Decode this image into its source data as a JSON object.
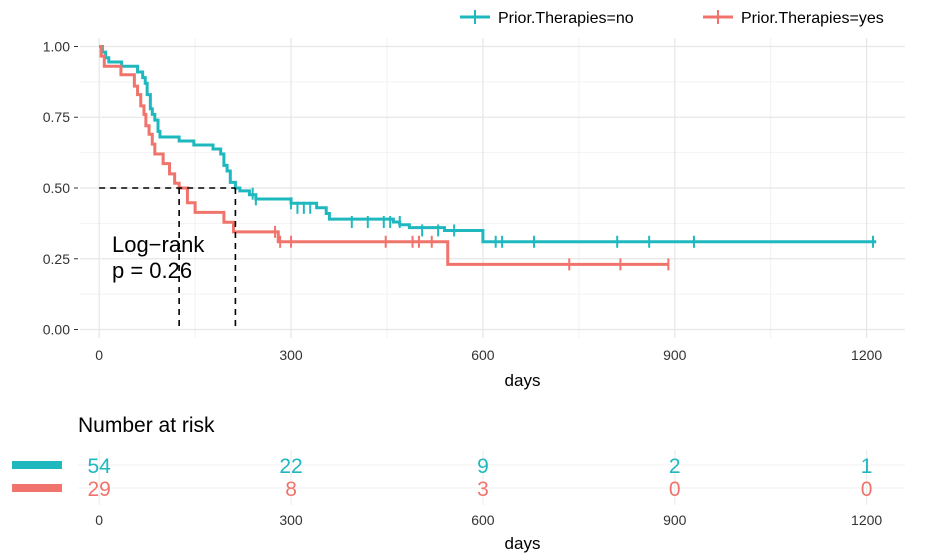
{
  "chart_data": [
    {
      "type": "line",
      "subtype": "kaplan-meier survival curve",
      "xlabel": "days",
      "ylabel": "",
      "xlim": [
        -30,
        1260
      ],
      "ylim": [
        -0.03,
        1.03
      ],
      "x_ticks": [
        0,
        300,
        600,
        900,
        1200
      ],
      "x_tick_labels": [
        "0",
        "300",
        "600",
        "900",
        "1200"
      ],
      "y_ticks": [
        0,
        0.25,
        0.5,
        0.75,
        1
      ],
      "y_tick_labels": [
        "0.00",
        "0.25",
        "0.50",
        "0.75",
        "1.00"
      ],
      "grid": true,
      "legend_position": "top-right",
      "annotation": {
        "line1": "Log−rank",
        "line2": "p = 0.26",
        "x": 20,
        "y": 0.26
      },
      "median_lines": {
        "y": 0.5,
        "x_values": [
          125,
          213
        ]
      },
      "series": [
        {
          "name": "Prior.Therapies=no",
          "color": "#1FB8BF",
          "steps": [
            [
              0,
              1.0
            ],
            [
              5,
              0.98
            ],
            [
              10,
              0.96
            ],
            [
              15,
              0.945
            ],
            [
              30,
              0.945
            ],
            [
              35,
              0.93
            ],
            [
              55,
              0.93
            ],
            [
              60,
              0.91
            ],
            [
              68,
              0.89
            ],
            [
              72,
              0.87
            ],
            [
              75,
              0.83
            ],
            [
              80,
              0.78
            ],
            [
              83,
              0.76
            ],
            [
              87,
              0.74
            ],
            [
              92,
              0.7
            ],
            [
              95,
              0.68
            ],
            [
              120,
              0.68
            ],
            [
              125,
              0.666
            ],
            [
              145,
              0.666
            ],
            [
              148,
              0.652
            ],
            [
              175,
              0.652
            ],
            [
              178,
              0.638
            ],
            [
              190,
              0.62
            ],
            [
              195,
              0.58
            ],
            [
              200,
              0.56
            ],
            [
              205,
              0.52
            ],
            [
              213,
              0.5
            ],
            [
              220,
              0.49
            ],
            [
              232,
              0.49
            ],
            [
              235,
              0.476
            ],
            [
              245,
              0.461
            ],
            [
              300,
              0.446
            ],
            [
              340,
              0.43
            ],
            [
              355,
              0.41
            ],
            [
              360,
              0.39
            ],
            [
              460,
              0.38
            ],
            [
              470,
              0.37
            ],
            [
              485,
              0.36
            ],
            [
              540,
              0.35
            ],
            [
              600,
              0.31
            ],
            [
              1215,
              0.31
            ]
          ],
          "censor_points": [
            [
              240,
              0.48
            ],
            [
              245,
              0.46
            ],
            [
              300,
              0.446
            ],
            [
              310,
              0.43
            ],
            [
              320,
              0.43
            ],
            [
              330,
              0.43
            ],
            [
              395,
              0.38
            ],
            [
              420,
              0.38
            ],
            [
              445,
              0.38
            ],
            [
              455,
              0.38
            ],
            [
              470,
              0.38
            ],
            [
              505,
              0.35
            ],
            [
              530,
              0.35
            ],
            [
              555,
              0.35
            ],
            [
              620,
              0.31
            ],
            [
              630,
              0.31
            ],
            [
              680,
              0.31
            ],
            [
              810,
              0.31
            ],
            [
              860,
              0.31
            ],
            [
              930,
              0.31
            ],
            [
              1210,
              0.31
            ]
          ]
        },
        {
          "name": "Prior.Therapies=yes",
          "color": "#F0746B",
          "steps": [
            [
              0,
              1.0
            ],
            [
              3,
              0.966
            ],
            [
              8,
              0.93
            ],
            [
              30,
              0.93
            ],
            [
              34,
              0.9
            ],
            [
              55,
              0.86
            ],
            [
              60,
              0.83
            ],
            [
              65,
              0.79
            ],
            [
              70,
              0.76
            ],
            [
              73,
              0.72
            ],
            [
              78,
              0.69
            ],
            [
              83,
              0.655
            ],
            [
              87,
              0.62
            ],
            [
              100,
              0.586
            ],
            [
              110,
              0.55
            ],
            [
              118,
              0.517
            ],
            [
              125,
              0.5
            ],
            [
              138,
              0.448
            ],
            [
              150,
              0.414
            ],
            [
              190,
              0.414
            ],
            [
              195,
              0.379
            ],
            [
              210,
              0.345
            ],
            [
              280,
              0.31
            ],
            [
              540,
              0.31
            ],
            [
              545,
              0.23
            ],
            [
              890,
              0.23
            ]
          ],
          "censor_points": [
            [
              275,
              0.345
            ],
            [
              283,
              0.31
            ],
            [
              300,
              0.31
            ],
            [
              448,
              0.31
            ],
            [
              490,
              0.31
            ],
            [
              500,
              0.31
            ],
            [
              520,
              0.31
            ],
            [
              735,
              0.23
            ],
            [
              815,
              0.23
            ],
            [
              890,
              0.23
            ]
          ]
        }
      ]
    },
    {
      "type": "table",
      "title": "Number at risk",
      "xlabel": "days",
      "x_ticks": [
        0,
        300,
        600,
        900,
        1200
      ],
      "x_tick_labels": [
        "0",
        "300",
        "600",
        "900",
        "1200"
      ],
      "rows": [
        {
          "name": "Prior.Therapies=no",
          "color": "#1FB8BF",
          "values": [
            "54",
            "22",
            "9",
            "2",
            "1"
          ]
        },
        {
          "name": "Prior.Therapies=yes",
          "color": "#F0746B",
          "values": [
            "29",
            "8",
            "3",
            "0",
            "0"
          ]
        }
      ]
    }
  ]
}
